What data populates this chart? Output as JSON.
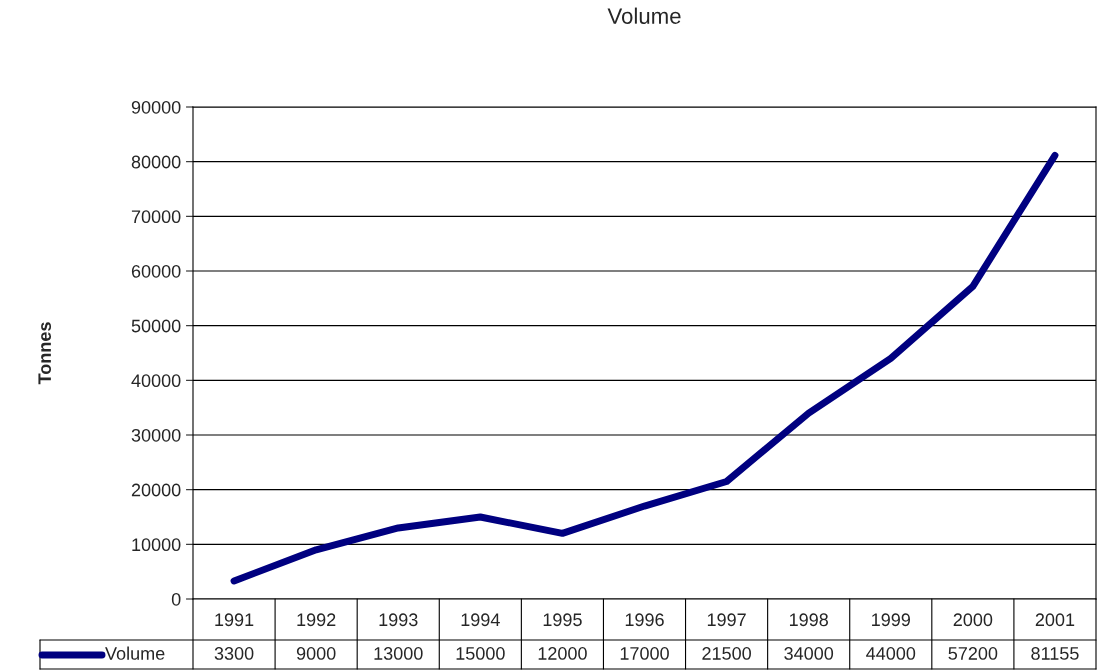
{
  "chart_data": {
    "type": "line",
    "title": "Volume",
    "ylabel": "Tonnes",
    "categories": [
      "1991",
      "1992",
      "1993",
      "1994",
      "1995",
      "1996",
      "1997",
      "1998",
      "1999",
      "2000",
      "2001"
    ],
    "series": [
      {
        "name": "Volume",
        "color": "#000080",
        "values": [
          3300,
          9000,
          13000,
          15000,
          12000,
          17000,
          21500,
          34000,
          44000,
          57200,
          81155
        ]
      }
    ],
    "ylim": [
      0,
      90000
    ],
    "yticks": [
      0,
      10000,
      20000,
      30000,
      40000,
      50000,
      60000,
      70000,
      80000,
      90000
    ],
    "grid": "y",
    "legend": "bottom",
    "data_labels": true,
    "marker": "none",
    "line_style": "solid"
  }
}
